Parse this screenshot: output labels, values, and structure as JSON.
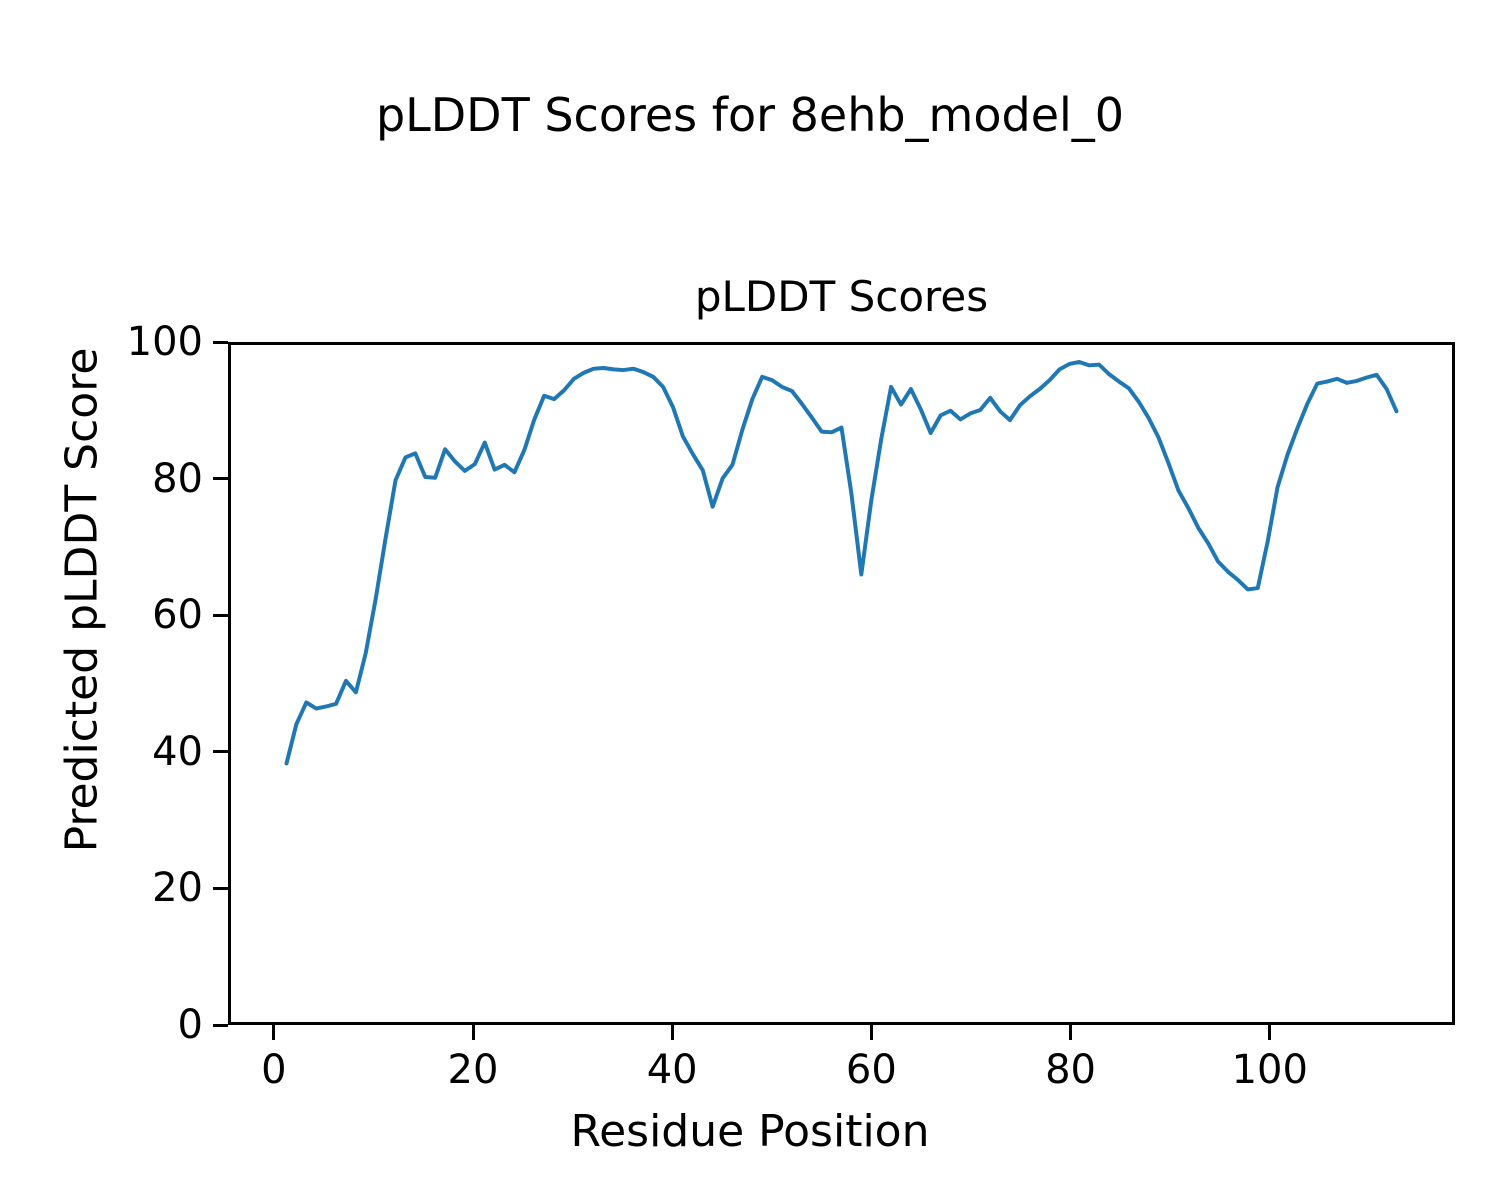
{
  "figure": {
    "suptitle": "pLDDT Scores for 8ehb_model_0"
  },
  "axes": {
    "title": "pLDDT Scores",
    "xlabel": "Residue Position",
    "ylabel": "Predicted pLDDT Score",
    "xticks": [
      0,
      20,
      40,
      60,
      80,
      100
    ],
    "yticks": [
      0,
      20,
      40,
      60,
      80,
      100
    ],
    "xlim": [
      -4.6,
      118.6
    ],
    "ylim": [
      0,
      100
    ]
  },
  "chart_data": {
    "type": "line",
    "title": "pLDDT Scores",
    "suptitle": "pLDDT Scores for 8ehb_model_0",
    "xlabel": "Residue Position",
    "ylabel": "Predicted pLDDT Score",
    "xlim": [
      -4.6,
      118.6
    ],
    "ylim": [
      0,
      100
    ],
    "grid": false,
    "legend": false,
    "series": [
      {
        "name": "pLDDT",
        "color": "#1f77b4",
        "line_width": 4,
        "x": [
          1,
          2,
          3,
          4,
          5,
          6,
          7,
          8,
          9,
          10,
          11,
          12,
          13,
          14,
          15,
          16,
          17,
          18,
          19,
          20,
          21,
          22,
          23,
          24,
          25,
          26,
          27,
          28,
          29,
          30,
          31,
          32,
          33,
          34,
          35,
          36,
          37,
          38,
          39,
          40,
          41,
          42,
          43,
          44,
          45,
          46,
          47,
          48,
          49,
          50,
          51,
          52,
          53,
          54,
          55,
          56,
          57,
          58,
          59,
          60,
          61,
          62,
          63,
          64,
          65,
          66,
          67,
          68,
          69,
          70,
          71,
          72,
          73,
          74,
          75,
          76,
          77,
          78,
          79,
          80,
          81,
          82,
          83,
          84,
          85,
          86,
          87,
          88,
          89,
          90,
          91,
          92,
          93,
          94,
          95,
          96,
          97,
          98,
          99,
          100,
          101,
          102,
          103,
          104,
          105,
          106,
          107,
          108,
          109,
          110,
          111,
          112,
          113
        ],
        "y": [
          38.2,
          44.0,
          47.2,
          46.3,
          46.6,
          47.0,
          50.4,
          48.7,
          54.5,
          62.5,
          71.5,
          80.0,
          83.4,
          84.0,
          80.5,
          80.4,
          84.6,
          82.8,
          81.4,
          82.4,
          85.6,
          81.6,
          82.3,
          81.2,
          84.5,
          89.0,
          92.5,
          92.0,
          93.3,
          95.0,
          95.9,
          96.5,
          96.6,
          96.4,
          96.3,
          96.5,
          96.0,
          95.3,
          93.8,
          90.8,
          86.5,
          83.9,
          81.5,
          76.1,
          80.3,
          82.3,
          87.5,
          92.0,
          95.3,
          94.8,
          93.8,
          93.2,
          91.3,
          89.3,
          87.2,
          87.1,
          87.8,
          78.0,
          66.1,
          77.0,
          86.0,
          93.8,
          91.2,
          93.5,
          90.5,
          87.0,
          89.6,
          90.3,
          89.0,
          89.9,
          90.4,
          92.2,
          90.2,
          88.9,
          91.1,
          92.4,
          93.5,
          94.8,
          96.4,
          97.2,
          97.5,
          97.0,
          97.1,
          95.7,
          94.6,
          93.6,
          91.6,
          89.2,
          86.3,
          82.5,
          78.5,
          75.9,
          73.0,
          70.7,
          68.0,
          66.5,
          65.3,
          63.9,
          64.1,
          71.0,
          79.0,
          83.8,
          87.7,
          91.3,
          94.3,
          94.6,
          95.0,
          94.4,
          94.7,
          95.2,
          95.6,
          93.5,
          90.2
        ]
      }
    ]
  }
}
